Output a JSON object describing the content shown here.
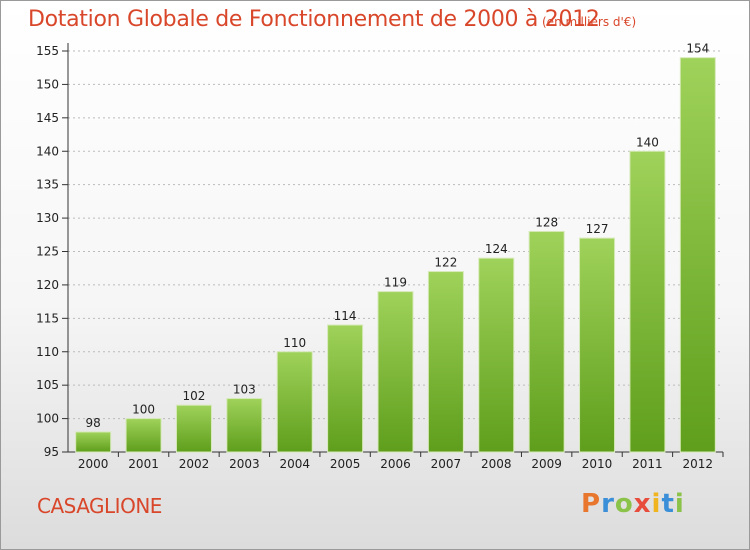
{
  "title": "Dotation Globale de Fonctionnement de 2000 à 2012",
  "unit_note": "(en milliers d'€)",
  "commune": "CASAGLIONE",
  "brand": {
    "letters": [
      "P",
      "r",
      "o",
      "x",
      "i",
      "t",
      "i"
    ],
    "colors": [
      "#e8762d",
      "#3b8fd8",
      "#8bc34a",
      "#e84c3d",
      "#f0b51e",
      "#3b8fd8",
      "#8bc34a"
    ]
  },
  "colors": {
    "bar_top": "#9fd25a",
    "bar_bottom": "#5f9e1c",
    "title": "#d9472b",
    "axis": "#333333",
    "grid": "#bbbbbb"
  },
  "chart_data": {
    "type": "bar",
    "categories": [
      "2000",
      "2001",
      "2002",
      "2003",
      "2004",
      "2005",
      "2006",
      "2007",
      "2008",
      "2009",
      "2010",
      "2011",
      "2012"
    ],
    "values": [
      98,
      100,
      102,
      103,
      110,
      114,
      119,
      122,
      124,
      128,
      127,
      140,
      154
    ],
    "ylim": [
      95,
      155
    ],
    "yticks": [
      95,
      100,
      105,
      110,
      115,
      120,
      125,
      130,
      135,
      140,
      145,
      150,
      155
    ],
    "grid": true,
    "data_labels": true
  }
}
